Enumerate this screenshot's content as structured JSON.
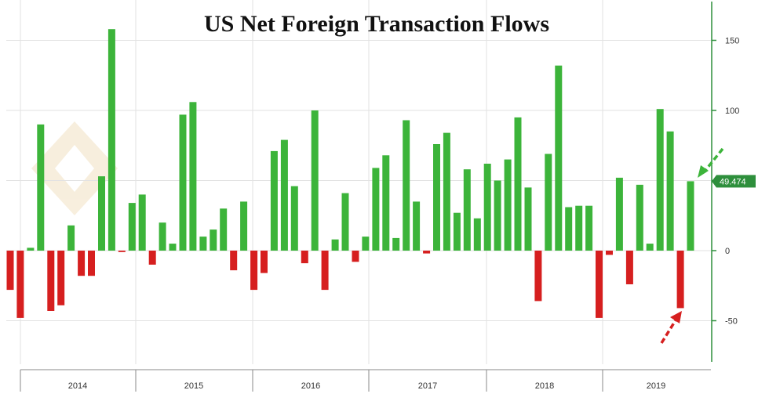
{
  "chart_data": {
    "type": "bar",
    "title": "US Net Foreign Transaction Flows",
    "xlabel": "",
    "ylabel": "",
    "ylim": [
      -80,
      175
    ],
    "yticks": [
      -50,
      0,
      50,
      100,
      150
    ],
    "grid": true,
    "last_value_label": "49.474",
    "years": [
      "2014",
      "2015",
      "2016",
      "2017",
      "2018",
      "2019"
    ],
    "values": [
      -28,
      -48,
      2,
      90,
      -43,
      -39,
      18,
      -18,
      -18,
      53,
      158,
      -1,
      34,
      40,
      -10,
      20,
      5,
      97,
      106,
      10,
      15,
      30,
      -14,
      35,
      -28,
      -16,
      71,
      79,
      46,
      -9,
      100,
      -28,
      8,
      41,
      -8,
      10,
      59,
      68,
      9,
      93,
      35,
      -2,
      76,
      84,
      27,
      58,
      23,
      62,
      50,
      65,
      95,
      45,
      -36,
      69,
      132,
      31,
      32,
      32,
      -48,
      -3,
      52,
      -24,
      47,
      5,
      101,
      85,
      -41,
      49.474
    ],
    "colors": {
      "positive": "#3cb43a",
      "negative": "#d61f1f",
      "value_box": "#2e8f3c",
      "axis": "#2e8f3c"
    }
  }
}
